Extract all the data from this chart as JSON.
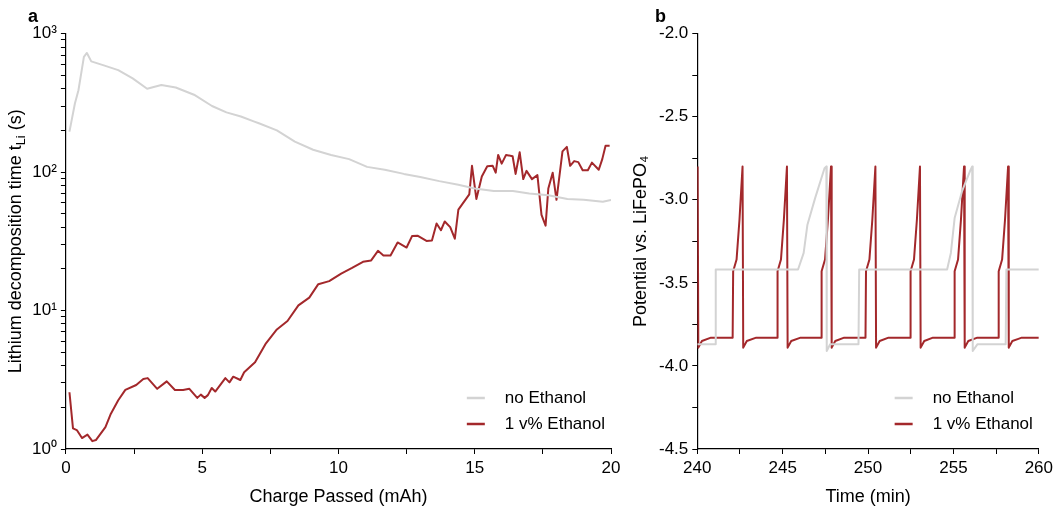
{
  "chart_data": [
    {
      "type": "line",
      "title": "a",
      "xlabel": "Charge Passed (mAh)",
      "ylabel": "Lithium decomposition time t$_{Li}$ (s)",
      "log": "y",
      "legend": "bottom right",
      "xlim": [
        0,
        20
      ],
      "xticks": [
        0,
        {
          "value": 2.5,
          "label": null
        },
        5,
        {
          "value": 7.5,
          "label": null
        },
        10,
        {
          "value": 12.5,
          "label": null
        },
        15,
        {
          "value": 17.5,
          "label": null
        },
        20
      ],
      "ylim": [
        1,
        1000
      ],
      "yticks": [
        {
          "value": 1,
          "label": "10⁰"
        },
        {
          "value": 2,
          "label": null
        },
        {
          "value": 3,
          "label": null
        },
        {
          "value": 4,
          "label": null
        },
        {
          "value": 5,
          "label": null
        },
        {
          "value": 6,
          "label": null
        },
        {
          "value": 7,
          "label": null
        },
        {
          "value": 8,
          "label": null
        },
        {
          "value": 9,
          "label": null
        },
        {
          "value": 10,
          "label": "10¹"
        },
        {
          "value": 20,
          "label": null
        },
        {
          "value": 30,
          "label": null
        },
        {
          "value": 40,
          "label": null
        },
        {
          "value": 50,
          "label": null
        },
        {
          "value": 60,
          "label": null
        },
        {
          "value": 70,
          "label": null
        },
        {
          "value": 80,
          "label": null
        },
        {
          "value": 90,
          "label": null
        },
        {
          "value": 100,
          "label": "10²"
        },
        {
          "value": 200,
          "label": null
        },
        {
          "value": 300,
          "label": null
        },
        {
          "value": 400,
          "label": null
        },
        {
          "value": 500,
          "label": null
        },
        {
          "value": 600,
          "label": null
        },
        {
          "value": 700,
          "label": null
        },
        {
          "value": 800,
          "label": null
        },
        {
          "value": 900,
          "label": null
        },
        {
          "value": 1000,
          "label": "10³"
        }
      ],
      "series": [
        {
          "name": "no Ethanol",
          "color": "#d3d3d3",
          "x": [
            0.13,
            0.33,
            0.46,
            0.66,
            0.77,
            0.93,
            1.39,
            1.92,
            2.45,
            2.98,
            3.5,
            4.03,
            4.7,
            5.36,
            5.89,
            6.42,
            7.08,
            7.74,
            8.4,
            9.07,
            9.73,
            10.39,
            11.05,
            11.7,
            12.4,
            13.0,
            13.7,
            14.4,
            15.0,
            15.7,
            16.4,
            17.0,
            17.7,
            18.4,
            19.0,
            19.7,
            20.0
          ],
          "values": [
            196,
            313,
            390,
            680,
            725,
            630,
            590,
            545,
            475,
            400,
            425,
            408,
            362,
            300,
            270,
            252,
            225,
            200,
            166,
            145,
            133,
            124,
            109,
            104,
            97,
            92,
            86,
            81,
            76,
            73,
            73,
            70,
            68,
            64,
            63,
            61,
            63
          ]
        },
        {
          "name": "1 v% Ethanol",
          "color": "#a3282b",
          "x": [
            0.13,
            0.26,
            0.4,
            0.59,
            0.79,
            0.97,
            1.1,
            1.45,
            1.65,
            1.92,
            2.18,
            2.58,
            2.84,
            3.0,
            3.35,
            3.7,
            4.0,
            4.3,
            4.53,
            4.82,
            4.95,
            5.09,
            5.21,
            5.35,
            5.48,
            5.85,
            6.0,
            6.14,
            6.4,
            6.54,
            6.94,
            7.34,
            7.74,
            8.13,
            8.53,
            8.93,
            9.26,
            9.66,
            10.1,
            10.5,
            10.9,
            11.2,
            11.45,
            11.65,
            11.91,
            12.17,
            12.5,
            12.7,
            12.9,
            13.23,
            13.43,
            13.6,
            13.76,
            13.9,
            14.1,
            14.27,
            14.4,
            14.8,
            14.9,
            15.06,
            15.26,
            15.46,
            15.66,
            15.77,
            15.86,
            15.99,
            16.15,
            16.39,
            16.5,
            16.65,
            16.78,
            16.9,
            17.1,
            17.3,
            17.45,
            17.6,
            17.7,
            17.86,
            18.0,
            18.22,
            18.38,
            18.5,
            18.65,
            18.8,
            18.96,
            19.15,
            19.3,
            19.55,
            19.68,
            19.8,
            19.95
          ],
          "values": [
            2.57,
            1.41,
            1.37,
            1.2,
            1.27,
            1.14,
            1.16,
            1.44,
            1.8,
            2.25,
            2.67,
            2.9,
            3.2,
            3.25,
            2.72,
            3.08,
            2.67,
            2.67,
            2.72,
            2.34,
            2.47,
            2.34,
            2.45,
            2.76,
            2.6,
            3.25,
            3.03,
            3.33,
            3.15,
            3.58,
            4.23,
            5.8,
            7.3,
            8.4,
            10.9,
            12.4,
            15.5,
            16.3,
            18.5,
            20.3,
            22.5,
            23,
            27,
            25,
            25,
            31,
            28.5,
            34.5,
            34.7,
            31.8,
            32,
            42.5,
            38,
            44,
            40,
            33,
            53.6,
            69,
            111,
            64,
            93,
            110,
            111,
            99,
            133,
            115,
            133,
            130,
            97,
            139,
            89,
            102,
            89,
            95,
            49,
            41,
            76,
            99,
            63,
            141,
            152,
            111,
            120,
            118,
            103,
            103,
            117,
            104,
            124,
            155,
            155
          ]
        }
      ]
    },
    {
      "type": "line",
      "title": "b",
      "xlabel": "Time (min)",
      "ylabel": "Potential vs. LiFePO₄",
      "legend": "bottom right",
      "xlim": [
        240,
        260
      ],
      "xticks": [
        240,
        {
          "value": 242.5,
          "label": null
        },
        245,
        {
          "value": 247.5,
          "label": null
        },
        250,
        {
          "value": 252.5,
          "label": null
        },
        255,
        {
          "value": 257.5,
          "label": null
        },
        260
      ],
      "ylim": [
        -4.5,
        -2.0
      ],
      "yticks": [
        -4.5,
        {
          "value": -4.25,
          "label": null
        },
        {
          "value": -4.0,
          "label": "-4.0"
        },
        {
          "value": -3.75,
          "label": null
        },
        -3.5,
        {
          "value": -3.25,
          "label": null
        },
        {
          "value": -3.0,
          "label": "-3.0"
        },
        {
          "value": -2.75,
          "label": null
        },
        -2.5,
        {
          "value": -2.25,
          "label": null
        },
        {
          "value": -2.0,
          "label": "-2.0"
        }
      ],
      "series": [
        {
          "name": "no Ethanol",
          "color": "#d3d3d3",
          "x": [
            240.0,
            241.06,
            241.08,
            245.9,
            246.23,
            246.45,
            246.9,
            247.45,
            247.56,
            247.58,
            247.78,
            249.44,
            249.48,
            254.63,
            254.85,
            255.07,
            255.5,
            255.96,
            256.1,
            256.13,
            256.4,
            258.06,
            258.1,
            260.0
          ],
          "values": [
            -3.87,
            -3.87,
            -3.42,
            -3.42,
            -3.32,
            -3.15,
            -2.99,
            -2.81,
            -2.8,
            -3.91,
            -3.87,
            -3.87,
            -3.42,
            -3.42,
            -3.32,
            -3.11,
            -2.95,
            -2.83,
            -2.8,
            -3.91,
            -3.87,
            -3.87,
            -3.42,
            -3.42
          ]
        },
        {
          "name": "1 v% Ethanol",
          "color": "#a3282b",
          "x": [
            240.02,
            240.06,
            240.27,
            240.8,
            242.07,
            242.1,
            242.3,
            242.47,
            242.65,
            242.69,
            242.9,
            243.45,
            244.67,
            244.7,
            244.9,
            245.07,
            245.25,
            245.29,
            245.5,
            246.05,
            247.25,
            247.28,
            247.48,
            247.65,
            247.83,
            247.87,
            248.08,
            248.6,
            249.85,
            249.88,
            250.08,
            250.25,
            250.43,
            250.47,
            250.68,
            251.2,
            252.46,
            252.49,
            252.69,
            252.86,
            253.04,
            253.08,
            253.29,
            253.8,
            255.04,
            255.07,
            255.27,
            255.44,
            255.62,
            255.66,
            255.87,
            256.4,
            257.62,
            257.65,
            257.85,
            258.02,
            258.2,
            258.24,
            258.45,
            259.0,
            260.0
          ],
          "values": [
            -2.8,
            -3.89,
            -3.85,
            -3.83,
            -3.83,
            -3.43,
            -3.36,
            -3.12,
            -2.8,
            -3.89,
            -3.85,
            -3.83,
            -3.83,
            -3.43,
            -3.36,
            -3.12,
            -2.8,
            -3.89,
            -3.85,
            -3.83,
            -3.83,
            -3.43,
            -3.36,
            -3.12,
            -2.8,
            -3.89,
            -3.85,
            -3.83,
            -3.83,
            -3.43,
            -3.36,
            -3.12,
            -2.8,
            -3.89,
            -3.85,
            -3.83,
            -3.83,
            -3.43,
            -3.36,
            -3.12,
            -2.8,
            -3.89,
            -3.85,
            -3.83,
            -3.83,
            -3.43,
            -3.36,
            -3.12,
            -2.8,
            -3.89,
            -3.85,
            -3.83,
            -3.83,
            -3.43,
            -3.36,
            -3.12,
            -2.8,
            -3.89,
            -3.85,
            -3.83,
            -3.83
          ]
        }
      ]
    }
  ]
}
